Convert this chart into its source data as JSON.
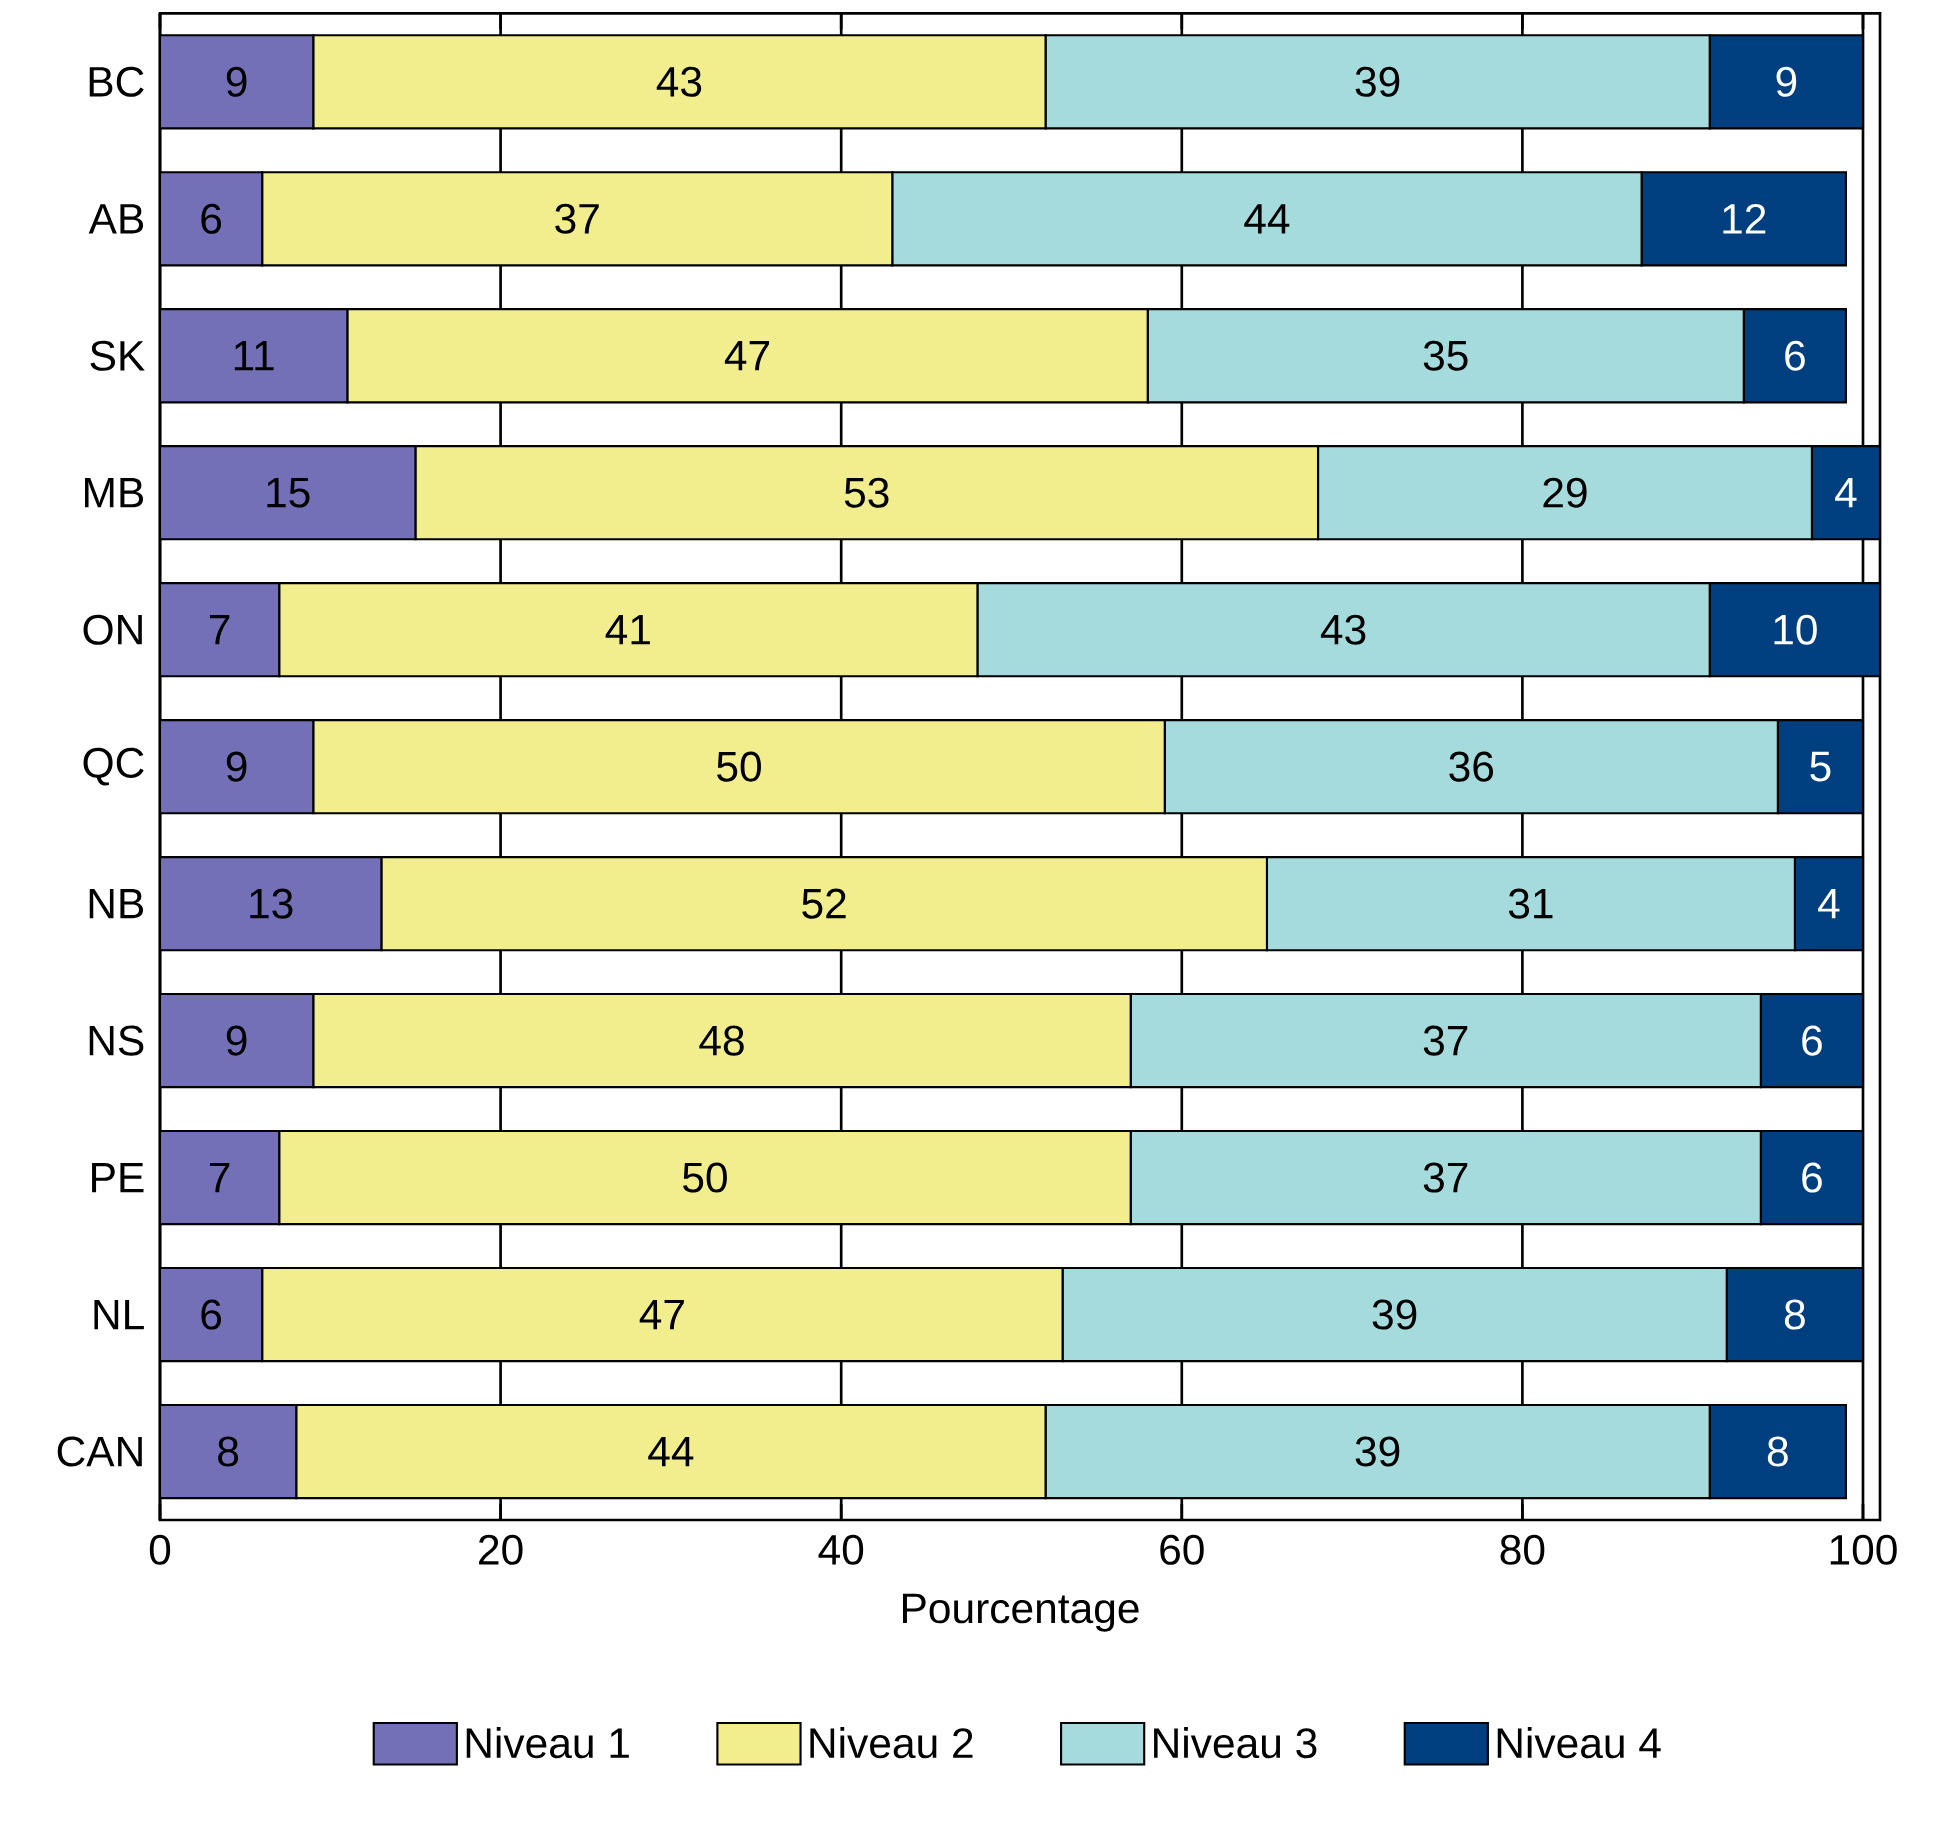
{
  "chart_data": {
    "type": "bar",
    "orientation": "horizontal",
    "stacked": true,
    "xlabel": "Pourcentage",
    "categories": [
      "BC",
      "AB",
      "SK",
      "MB",
      "ON",
      "QC",
      "NB",
      "NS",
      "PE",
      "NL",
      "CAN"
    ],
    "series": [
      {
        "name": "Niveau 1",
        "color": "#7470b8",
        "values": [
          9,
          6,
          11,
          15,
          7,
          9,
          13,
          9,
          7,
          6,
          8
        ]
      },
      {
        "name": "Niveau 2",
        "color": "#f2ee8e",
        "values": [
          43,
          37,
          47,
          53,
          41,
          50,
          52,
          48,
          50,
          47,
          44
        ]
      },
      {
        "name": "Niveau 3",
        "color": "#a5dbdd",
        "values": [
          39,
          44,
          35,
          29,
          43,
          36,
          31,
          37,
          37,
          39,
          39
        ]
      },
      {
        "name": "Niveau 4",
        "color": "#003f7f",
        "values": [
          9,
          12,
          6,
          4,
          10,
          5,
          4,
          6,
          6,
          8,
          8
        ]
      }
    ],
    "xlim": [
      0,
      101
    ],
    "xticks": [
      0,
      20,
      40,
      60,
      80,
      100
    ],
    "grid": "x",
    "legend": "bottom",
    "data_labels": true
  }
}
